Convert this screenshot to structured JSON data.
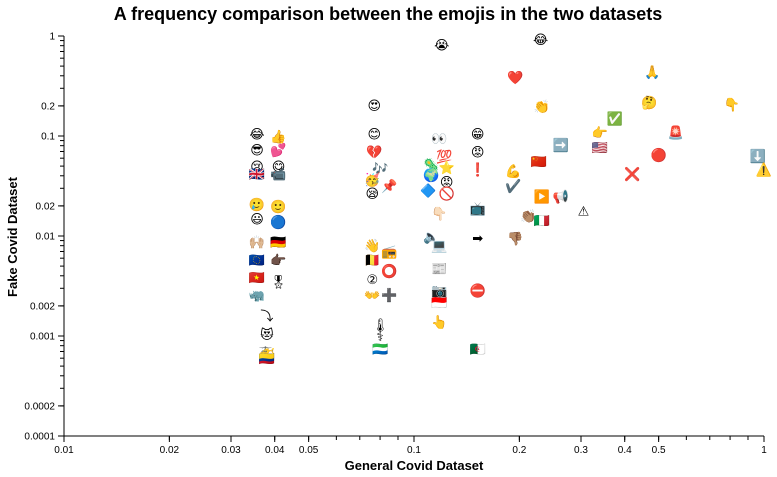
{
  "chart_data": {
    "type": "scatter",
    "title": "A frequency comparison between the emojis in the two datasets",
    "xlabel": "General Covid Dataset",
    "ylabel": "Fake Covid Dataset",
    "xscale": "log",
    "yscale": "log",
    "xlim": [
      0.01,
      1
    ],
    "ylim": [
      0.0001,
      1
    ],
    "x_ticks": [
      {
        "value": 0.01,
        "label": "0.01"
      },
      {
        "value": 0.02,
        "label": "0.02"
      },
      {
        "value": 0.03,
        "label": "0.03"
      },
      {
        "value": 0.04,
        "label": "0.04"
      },
      {
        "value": 0.05,
        "label": "0.05"
      },
      {
        "value": 0.1,
        "label": "0.1"
      },
      {
        "value": 0.2,
        "label": "0.2"
      },
      {
        "value": 0.3,
        "label": "0.3"
      },
      {
        "value": 0.4,
        "label": "0.4"
      },
      {
        "value": 0.5,
        "label": "0.5"
      },
      {
        "value": 1,
        "label": "1"
      }
    ],
    "y_ticks": [
      {
        "value": 0.0001,
        "label": "0.0001"
      },
      {
        "value": 0.0002,
        "label": "0.0002"
      },
      {
        "value": 0.001,
        "label": "0.001"
      },
      {
        "value": 0.002,
        "label": "0.002"
      },
      {
        "value": 0.01,
        "label": "0.01"
      },
      {
        "value": 0.02,
        "label": "0.02"
      },
      {
        "value": 0.1,
        "label": "0.1"
      },
      {
        "value": 0.2,
        "label": "0.2"
      },
      {
        "value": 1,
        "label": "1"
      }
    ],
    "grid": false,
    "points": [
      {
        "emoji": "😂",
        "x": 0.23,
        "y": 0.93
      },
      {
        "emoji": "😭",
        "x": 0.12,
        "y": 0.82
      },
      {
        "emoji": "❤️",
        "x": 0.195,
        "y": 0.39
      },
      {
        "emoji": "🙏",
        "x": 0.48,
        "y": 0.44
      },
      {
        "emoji": "😍",
        "x": 0.077,
        "y": 0.205
      },
      {
        "emoji": "🤔",
        "x": 0.47,
        "y": 0.22
      },
      {
        "emoji": "👏",
        "x": 0.232,
        "y": 0.2
      },
      {
        "emoji": "👇",
        "x": 0.81,
        "y": 0.21
      },
      {
        "emoji": "✅",
        "x": 0.375,
        "y": 0.152
      },
      {
        "emoji": "👉",
        "x": 0.34,
        "y": 0.11
      },
      {
        "emoji": "🚨",
        "x": 0.56,
        "y": 0.11
      },
      {
        "emoji": "😂",
        "x": 0.0356,
        "y": 0.106
      },
      {
        "emoji": "👍",
        "x": 0.041,
        "y": 0.1
      },
      {
        "emoji": "😊",
        "x": 0.077,
        "y": 0.106
      },
      {
        "emoji": "😁",
        "x": 0.152,
        "y": 0.106
      },
      {
        "emoji": "👀",
        "x": 0.118,
        "y": 0.095
      },
      {
        "emoji": "➡️",
        "x": 0.263,
        "y": 0.082
      },
      {
        "emoji": "🇺🇸",
        "x": 0.34,
        "y": 0.078
      },
      {
        "emoji": "😎",
        "x": 0.0356,
        "y": 0.073
      },
      {
        "emoji": "💕",
        "x": 0.041,
        "y": 0.073
      },
      {
        "emoji": "💔",
        "x": 0.077,
        "y": 0.07
      },
      {
        "emoji": "😡",
        "x": 0.152,
        "y": 0.07
      },
      {
        "emoji": "💯",
        "x": 0.122,
        "y": 0.063
      },
      {
        "emoji": "🔴",
        "x": 0.5,
        "y": 0.065
      },
      {
        "emoji": "⬇️",
        "x": 0.96,
        "y": 0.064
      },
      {
        "emoji": "🇨🇳",
        "x": 0.227,
        "y": 0.056
      },
      {
        "emoji": "😢",
        "x": 0.0356,
        "y": 0.05
      },
      {
        "emoji": "😋",
        "x": 0.041,
        "y": 0.05
      },
      {
        "emoji": "🦠",
        "x": 0.112,
        "y": 0.052
      },
      {
        "emoji": "⭐",
        "x": 0.124,
        "y": 0.049
      },
      {
        "emoji": "❗",
        "x": 0.152,
        "y": 0.047
      },
      {
        "emoji": "🎶",
        "x": 0.08,
        "y": 0.048
      },
      {
        "emoji": "⚠️",
        "x": 1.0,
        "y": 0.047
      },
      {
        "emoji": "❌",
        "x": 0.42,
        "y": 0.042
      },
      {
        "emoji": "💪",
        "x": 0.192,
        "y": 0.045
      },
      {
        "emoji": "🇬🇧",
        "x": 0.0356,
        "y": 0.042
      },
      {
        "emoji": "📹",
        "x": 0.041,
        "y": 0.042
      },
      {
        "emoji": "🌍",
        "x": 0.112,
        "y": 0.041
      },
      {
        "emoji": "🥳",
        "x": 0.076,
        "y": 0.037
      },
      {
        "emoji": "😡",
        "x": 0.124,
        "y": 0.035
      },
      {
        "emoji": "✔️",
        "x": 0.192,
        "y": 0.032
      },
      {
        "emoji": "📌",
        "x": 0.085,
        "y": 0.032
      },
      {
        "emoji": "🔷",
        "x": 0.11,
        "y": 0.029
      },
      {
        "emoji": "🚫",
        "x": 0.124,
        "y": 0.027
      },
      {
        "emoji": "😪",
        "x": 0.076,
        "y": 0.027
      },
      {
        "emoji": "▶️",
        "x": 0.232,
        "y": 0.025
      },
      {
        "emoji": "📢",
        "x": 0.263,
        "y": 0.025
      },
      {
        "emoji": "🥲",
        "x": 0.0356,
        "y": 0.021
      },
      {
        "emoji": "🙂",
        "x": 0.041,
        "y": 0.02
      },
      {
        "emoji": "📺",
        "x": 0.152,
        "y": 0.019
      },
      {
        "emoji": "⚠",
        "x": 0.305,
        "y": 0.018
      },
      {
        "emoji": "😃",
        "x": 0.0356,
        "y": 0.015
      },
      {
        "emoji": "🔵",
        "x": 0.041,
        "y": 0.014
      },
      {
        "emoji": "👇🏻",
        "x": 0.118,
        "y": 0.017
      },
      {
        "emoji": "👏🏽",
        "x": 0.212,
        "y": 0.016
      },
      {
        "emoji": "🇮🇹",
        "x": 0.232,
        "y": 0.0145
      },
      {
        "emoji": "🔈",
        "x": 0.112,
        "y": 0.01
      },
      {
        "emoji": "➡",
        "x": 0.152,
        "y": 0.0097
      },
      {
        "emoji": "👎🏽",
        "x": 0.195,
        "y": 0.0095
      },
      {
        "emoji": "🙌🏼",
        "x": 0.0356,
        "y": 0.0088
      },
      {
        "emoji": "🇩🇪",
        "x": 0.041,
        "y": 0.0088
      },
      {
        "emoji": "👋",
        "x": 0.076,
        "y": 0.0081
      },
      {
        "emoji": "💻",
        "x": 0.118,
        "y": 0.0081
      },
      {
        "emoji": "📻",
        "x": 0.085,
        "y": 0.0071
      },
      {
        "emoji": "🇪🇺",
        "x": 0.0356,
        "y": 0.0058
      },
      {
        "emoji": "👉🏿",
        "x": 0.041,
        "y": 0.0058
      },
      {
        "emoji": "🇧🇪",
        "x": 0.076,
        "y": 0.0058
      },
      {
        "emoji": "📰",
        "x": 0.118,
        "y": 0.0048
      },
      {
        "emoji": "⭕",
        "x": 0.085,
        "y": 0.0045
      },
      {
        "emoji": "🇻🇳",
        "x": 0.0356,
        "y": 0.0039
      },
      {
        "emoji": "🎖",
        "x": 0.041,
        "y": 0.0035
      },
      {
        "emoji": "②",
        "x": 0.076,
        "y": 0.0037
      },
      {
        "emoji": "🦏",
        "x": 0.0356,
        "y": 0.0026
      },
      {
        "emoji": "👐",
        "x": 0.076,
        "y": 0.0026
      },
      {
        "emoji": "➕",
        "x": 0.085,
        "y": 0.0026
      },
      {
        "emoji": "📷",
        "x": 0.118,
        "y": 0.0029
      },
      {
        "emoji": "⛔",
        "x": 0.152,
        "y": 0.0029
      },
      {
        "emoji": "🇮🇩",
        "x": 0.118,
        "y": 0.0022
      },
      {
        "emoji": "⤵",
        "x": 0.038,
        "y": 0.0016
      },
      {
        "emoji": "👆",
        "x": 0.118,
        "y": 0.0014
      },
      {
        "emoji": "🌡",
        "x": 0.08,
        "y": 0.0013
      },
      {
        "emoji": "😻",
        "x": 0.038,
        "y": 0.00105
      },
      {
        "emoji": "⚕",
        "x": 0.08,
        "y": 0.001
      },
      {
        "emoji": "🚁",
        "x": 0.038,
        "y": 0.00075
      },
      {
        "emoji": "🇨🇴",
        "x": 0.038,
        "y": 0.0006
      },
      {
        "emoji": "🇸🇱",
        "x": 0.08,
        "y": 0.00075
      },
      {
        "emoji": "🇩🇿",
        "x": 0.152,
        "y": 0.00075
      }
    ]
  }
}
